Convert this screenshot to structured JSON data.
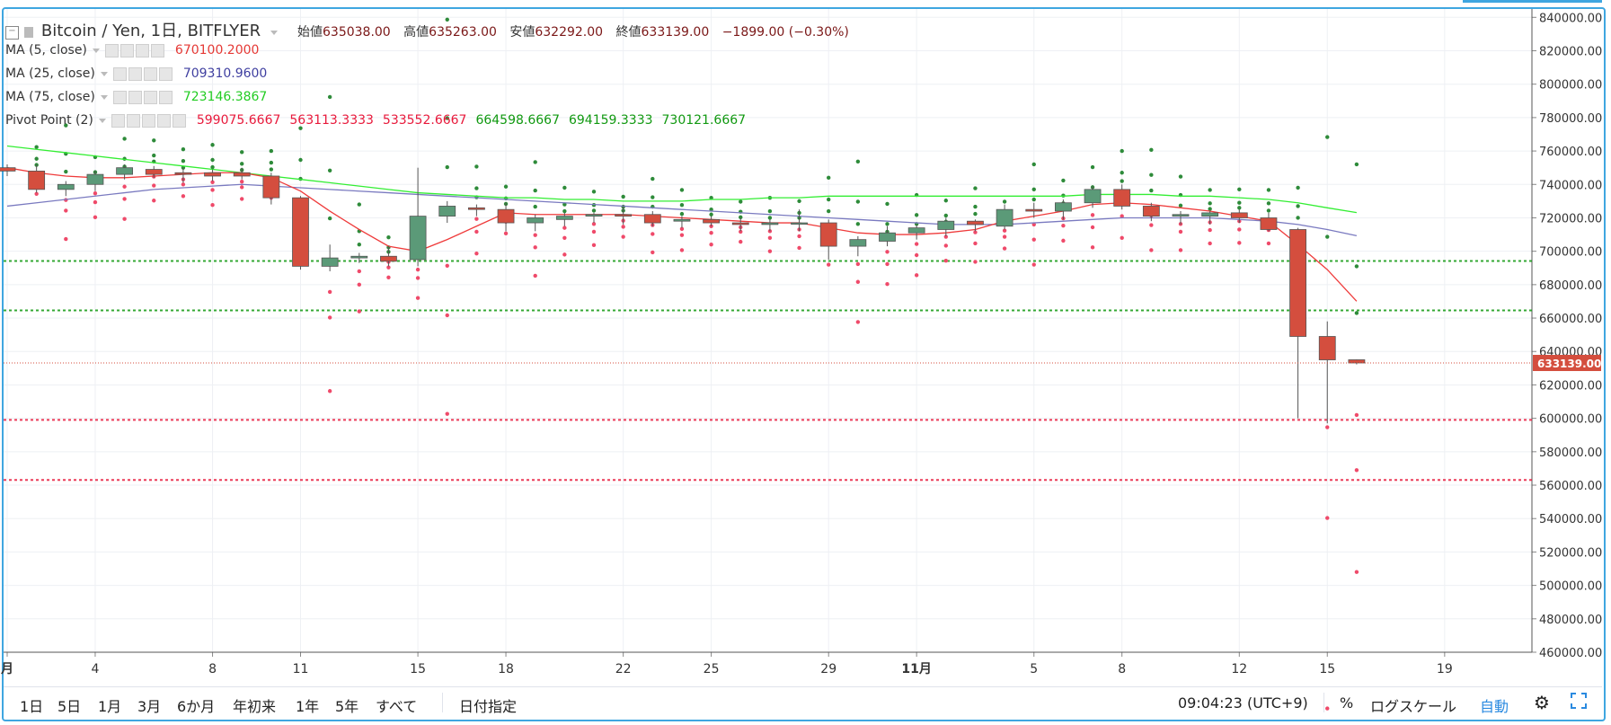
{
  "header": {
    "symbol": "Bitcoin / Yen, 1日, BITFLYER",
    "ohlc": [
      {
        "label": "始値",
        "value": "635038.00"
      },
      {
        "label": "高値",
        "value": "635263.00"
      },
      {
        "label": "安値",
        "value": "632292.00"
      },
      {
        "label": "終値",
        "value": "633139.00"
      }
    ],
    "change": "−1899.00 (−0.30%)"
  },
  "indicators": [
    {
      "name": "MA (5, close)",
      "values": [
        "670100.2000"
      ],
      "colors": [
        "#e53935"
      ]
    },
    {
      "name": "MA (25, close)",
      "values": [
        "709310.9600"
      ],
      "colors": [
        "#3f3fa0"
      ]
    },
    {
      "name": "MA (75, close)",
      "values": [
        "723146.3867"
      ],
      "colors": [
        "#22cc22"
      ]
    },
    {
      "name": "Pivot Point (2)",
      "values": [
        "599075.6667",
        "563113.3333",
        "533552.6667",
        "664598.6667",
        "694159.3333",
        "730121.6667"
      ],
      "colors": [
        "#e8193b",
        "#e8193b",
        "#e8193b",
        "#119911",
        "#119911",
        "#119911"
      ]
    }
  ],
  "price_axis": {
    "ticks": [
      "840000.00",
      "820000.00",
      "800000.00",
      "780000.00",
      "760000.00",
      "740000.00",
      "720000.00",
      "700000.00",
      "680000.00",
      "660000.00",
      "640000.00",
      "620000.00",
      "600000.00",
      "580000.00",
      "560000.00",
      "540000.00",
      "520000.00",
      "500000.00",
      "480000.00",
      "460000.00"
    ],
    "last_price_label": "633139.00"
  },
  "time_axis": {
    "labels": [
      "月",
      "4",
      "8",
      "11",
      "15",
      "18",
      "22",
      "25",
      "29",
      "11月",
      "5",
      "8",
      "12",
      "15",
      "19"
    ]
  },
  "bottom_bar": {
    "ranges": [
      "1日",
      "5日",
      "1月",
      "3月",
      "6か月",
      "年初来",
      "1年",
      "5年",
      "すべて"
    ],
    "date_range": "日付指定",
    "clock": "09:04:23 (UTC+9)",
    "percent": "%",
    "log_scale": "ログスケール",
    "auto": "自動"
  },
  "chart_data": {
    "type": "candlestick",
    "symbol": "Bitcoin / Yen",
    "interval": "1日",
    "exchange": "BITFLYER",
    "y_range": [
      460000,
      845000
    ],
    "colors": {
      "up": "#5b9a78",
      "down": "#d44e3e",
      "ma5": "#ef3b3b",
      "ma25": "#7a7ac0",
      "ma75": "#33ee33",
      "r_level": "#119911",
      "s_level": "#e8193b"
    },
    "candles": [
      {
        "o": 750000,
        "h": 752000,
        "l": 745000,
        "c": 748000
      },
      {
        "o": 748000,
        "h": 752000,
        "l": 735000,
        "c": 737000
      },
      {
        "o": 737000,
        "h": 742000,
        "l": 733000,
        "c": 740000
      },
      {
        "o": 740000,
        "h": 748000,
        "l": 736000,
        "c": 746000
      },
      {
        "o": 746000,
        "h": 752000,
        "l": 743000,
        "c": 750000
      },
      {
        "o": 749000,
        "h": 751000,
        "l": 744000,
        "c": 746000
      },
      {
        "o": 747000,
        "h": 750000,
        "l": 741000,
        "c": 746000
      },
      {
        "o": 747000,
        "h": 749000,
        "l": 742000,
        "c": 745000
      },
      {
        "o": 747000,
        "h": 750000,
        "l": 743000,
        "c": 745000
      },
      {
        "o": 745000,
        "h": 747000,
        "l": 728000,
        "c": 732000
      },
      {
        "o": 732000,
        "h": 733000,
        "l": 689000,
        "c": 691000
      },
      {
        "o": 691000,
        "h": 704000,
        "l": 688000,
        "c": 696000
      },
      {
        "o": 696000,
        "h": 699000,
        "l": 693000,
        "c": 697000
      },
      {
        "o": 697000,
        "h": 703000,
        "l": 691000,
        "c": 694000
      },
      {
        "o": 695000,
        "h": 750000,
        "l": 691000,
        "c": 721000
      },
      {
        "o": 721000,
        "h": 730000,
        "l": 717000,
        "c": 727000
      },
      {
        "o": 726000,
        "h": 728000,
        "l": 721000,
        "c": 725000
      },
      {
        "o": 725000,
        "h": 729000,
        "l": 712000,
        "c": 717000
      },
      {
        "o": 717000,
        "h": 722000,
        "l": 712000,
        "c": 720000
      },
      {
        "o": 719000,
        "h": 723000,
        "l": 715000,
        "c": 721000
      },
      {
        "o": 721000,
        "h": 723000,
        "l": 717000,
        "c": 722000
      },
      {
        "o": 722000,
        "h": 727000,
        "l": 716000,
        "c": 721000
      },
      {
        "o": 722000,
        "h": 724000,
        "l": 715000,
        "c": 717000
      },
      {
        "o": 718000,
        "h": 721000,
        "l": 714000,
        "c": 719000
      },
      {
        "o": 719000,
        "h": 721000,
        "l": 715000,
        "c": 717000
      },
      {
        "o": 717000,
        "h": 720000,
        "l": 712000,
        "c": 716000
      },
      {
        "o": 716000,
        "h": 719000,
        "l": 712000,
        "c": 717000
      },
      {
        "o": 717000,
        "h": 725000,
        "l": 712000,
        "c": 717000
      },
      {
        "o": 717000,
        "h": 719000,
        "l": 695000,
        "c": 703000
      },
      {
        "o": 703000,
        "h": 709000,
        "l": 697000,
        "c": 707000
      },
      {
        "o": 706000,
        "h": 715000,
        "l": 703000,
        "c": 711000
      },
      {
        "o": 711000,
        "h": 716000,
        "l": 707000,
        "c": 714000
      },
      {
        "o": 713000,
        "h": 720000,
        "l": 709000,
        "c": 718000
      },
      {
        "o": 718000,
        "h": 719000,
        "l": 712000,
        "c": 716000
      },
      {
        "o": 715000,
        "h": 728000,
        "l": 713000,
        "c": 725000
      },
      {
        "o": 725000,
        "h": 729000,
        "l": 720000,
        "c": 724000
      },
      {
        "o": 724000,
        "h": 731000,
        "l": 719000,
        "c": 729000
      },
      {
        "o": 729000,
        "h": 739000,
        "l": 726000,
        "c": 737000
      },
      {
        "o": 737000,
        "h": 740000,
        "l": 725000,
        "c": 727000
      },
      {
        "o": 727000,
        "h": 729000,
        "l": 718000,
        "c": 721000
      },
      {
        "o": 721000,
        "h": 724000,
        "l": 716000,
        "c": 722000
      },
      {
        "o": 721000,
        "h": 724000,
        "l": 716000,
        "c": 723000
      },
      {
        "o": 723000,
        "h": 725000,
        "l": 717000,
        "c": 720000
      },
      {
        "o": 720000,
        "h": 723000,
        "l": 712000,
        "c": 713000
      },
      {
        "o": 713000,
        "h": 714000,
        "l": 600000,
        "c": 649000
      },
      {
        "o": 649000,
        "h": 658000,
        "l": 597000,
        "c": 635000
      },
      {
        "o": 635038,
        "h": 635263,
        "l": 632292,
        "c": 633139
      }
    ],
    "ma5": [
      750000,
      747000,
      745000,
      744000,
      744000,
      745000,
      746000,
      747000,
      747000,
      744000,
      736000,
      724000,
      713000,
      703000,
      700000,
      707000,
      715000,
      723000,
      722000,
      722000,
      722000,
      722000,
      721000,
      720000,
      719000,
      718000,
      717000,
      717000,
      714000,
      711000,
      710000,
      710000,
      711000,
      713000,
      718000,
      721000,
      724000,
      728000,
      729000,
      728000,
      726000,
      724000,
      721000,
      718000,
      704000,
      689000,
      670100
    ],
    "ma25": [
      727000,
      729000,
      731000,
      733000,
      735000,
      737000,
      738000,
      739000,
      740000,
      739000,
      738000,
      737000,
      736000,
      735000,
      734000,
      733000,
      732000,
      731000,
      730000,
      729000,
      728000,
      727000,
      726000,
      725000,
      724000,
      723000,
      722000,
      721000,
      720000,
      719000,
      718000,
      717000,
      716000,
      716000,
      716000,
      717000,
      718000,
      719000,
      720000,
      720000,
      720000,
      720000,
      719000,
      718000,
      716000,
      713000,
      709311
    ],
    "ma75": [
      763000,
      761000,
      759000,
      757000,
      755000,
      753000,
      751000,
      749000,
      747000,
      745000,
      743000,
      741000,
      739000,
      737000,
      735000,
      734000,
      733000,
      732000,
      732000,
      731000,
      731000,
      730000,
      730000,
      730000,
      731000,
      731000,
      732000,
      732000,
      733000,
      733000,
      733000,
      733000,
      733000,
      733000,
      733000,
      733000,
      733000,
      734000,
      734000,
      734000,
      733000,
      733000,
      732000,
      731000,
      729000,
      726000,
      723146
    ],
    "pivot_points": {
      "last": {
        "S1": 599075.6667,
        "S2": 563113.3333,
        "S3": 533552.6667,
        "R1": 664598.6667,
        "R2": 694159.3333,
        "R3": 730121.6667
      }
    },
    "last_price": 633139.0
  }
}
